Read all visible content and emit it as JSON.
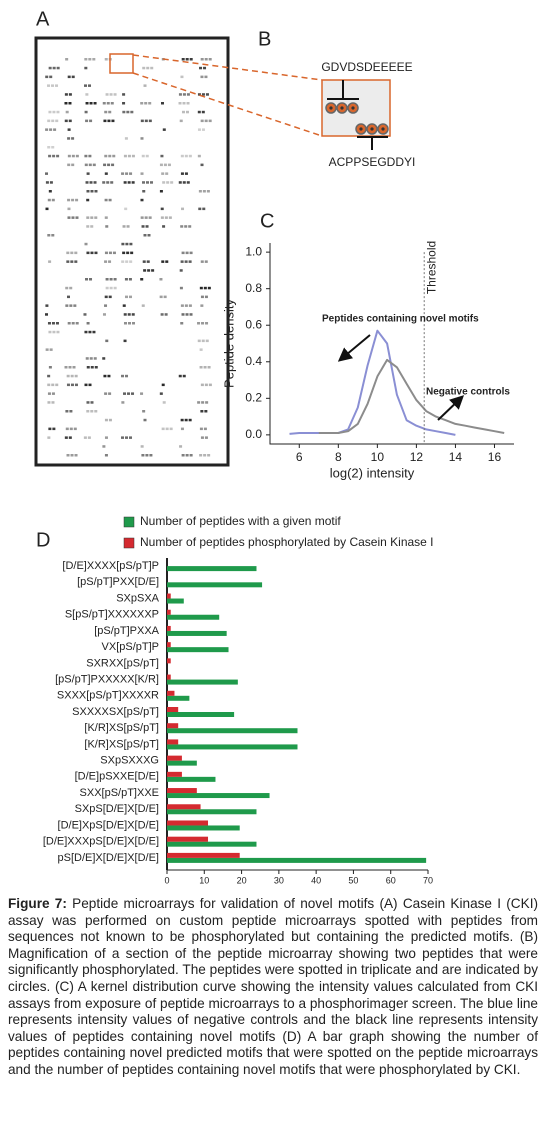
{
  "figure": {
    "panel_labels": [
      "A",
      "B",
      "C",
      "D"
    ],
    "panel_b": {
      "top_peptide": "GDVDSDEEEEE",
      "bottom_peptide": "ACPPSEGDDYI"
    }
  },
  "chart_data": [
    {
      "type": "line",
      "xlabel": "log(2) intensity",
      "ylabel": "Peptide density",
      "x": [
        5,
        5.5,
        6,
        6.5,
        7,
        7.5,
        8,
        8.5,
        9,
        9.5,
        10,
        10.5,
        11,
        11.5,
        12,
        12.5,
        13,
        13.5,
        14,
        14.5,
        15,
        15.5,
        16,
        16.5,
        17
      ],
      "series": [
        {
          "color": "#8a8fd4",
          "values": [
            null,
            0.005,
            0.01,
            0.01,
            0.01,
            0.01,
            0.01,
            0.03,
            0.15,
            0.38,
            0.57,
            0.5,
            0.22,
            0.08,
            0.05,
            0.03,
            0.02,
            0.01,
            0.0,
            null,
            null,
            null,
            null,
            null,
            null
          ]
        },
        {
          "color": "#8c8c8c",
          "values": [
            null,
            null,
            null,
            null,
            0.01,
            0.01,
            0.01,
            0.02,
            0.06,
            0.17,
            0.32,
            0.41,
            0.37,
            0.28,
            0.19,
            0.13,
            0.1,
            0.08,
            0.06,
            0.05,
            0.04,
            0.03,
            0.02,
            0.01,
            null
          ]
        }
      ],
      "xlim": [
        4.5,
        17
      ],
      "ylim": [
        -0.05,
        1.05
      ],
      "xticks": [
        6,
        8,
        10,
        12,
        14,
        16
      ],
      "yticks": [
        {
          "value": 0,
          "label": "0.0"
        },
        {
          "value": 0.2,
          "label": "0.2"
        },
        {
          "value": 0.4,
          "label": "0.4"
        },
        {
          "value": 0.6,
          "label": "0.6"
        },
        {
          "value": 0.8,
          "label": "0.8"
        },
        {
          "value": 1,
          "label": "1.0"
        }
      ],
      "annotations": [
        {
          "text": "Threshold",
          "x": 12.4
        },
        {
          "text": "Peptides containing novel motifs"
        },
        {
          "text": "Negative controls"
        }
      ]
    },
    {
      "type": "bar",
      "orientation": "horizontal",
      "categories": [
        "[D/E]XXXX[pS/pT]P",
        "[pS/pT]PXX[D/E]",
        "SXpSXA",
        "S[pS/pT]XXXXXXP",
        "[pS/pT]PXXA",
        "VX[pS/pT]P",
        "SXRXX[pS/pT]",
        "[pS/pT]PXXXXX[K/R]",
        "SXXX[pS/pT]XXXXR",
        "SXXXXSX[pS/pT]",
        "[K/R]XS[pS/pT]",
        "[K/R]XS[pS/pT]",
        "SXpSXXXG",
        "[D/E]pSXXE[D/E]",
        "SXX[pS/pT]XXE",
        "SXpS[D/E]X[D/E]",
        "[D/E]XpS[D/E]X[D/E]",
        "[D/E]XXXpS[D/E]X[D/E]",
        "pS[D/E]X[D/E]X[D/E]"
      ],
      "series": [
        {
          "name": "Number of peptides with a given motif",
          "color": "#1f9a4b",
          "values": [
            24,
            25.5,
            4.5,
            14,
            16,
            16.5,
            0,
            19,
            6,
            18,
            35,
            35,
            8,
            13,
            27.5,
            24,
            19.5,
            24,
            69.5
          ]
        },
        {
          "name": "Number of peptides phosphorylated by Casein Kinase I",
          "color": "#d42a30",
          "values": [
            0,
            0,
            1,
            1,
            1,
            1,
            1,
            1,
            2,
            3,
            3,
            3,
            4,
            4,
            8,
            9,
            11,
            11,
            19.5
          ]
        }
      ],
      "xlim": [
        0,
        70
      ],
      "xticks": [
        0,
        10,
        20,
        30,
        40,
        50,
        60,
        70
      ]
    }
  ],
  "caption": {
    "label": "Figure 7:",
    "text": "Peptide microarrays for validation of novel motifs (A) Casein Kinase I (CKI) assay was performed on custom peptide microarrays spotted with peptides from sequences not known to be phosphorylated but containing the predicted motifs. (B) Magnification of a section of the peptide microarray showing two peptides that were significantly phosphorylated.  The peptides were spotted in triplicate and are indicated by circles. (C) A kernel distribution curve showing the intensity values calculated from CKI assays from exposure of peptide microarrays to a phosphorimager screen. The blue line represents intensity values of negative controls and the black line represents intensity values of peptides containing novel motifs (D) A bar graph showing the number of peptides containing novel predicted motifs that were spotted on the peptide microarrays and the number of peptides containing novel motifs that were phosphorylated by CKI."
  }
}
